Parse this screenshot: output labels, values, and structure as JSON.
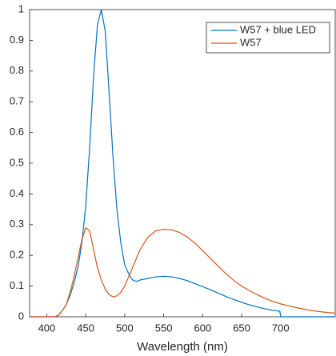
{
  "chart_data": {
    "type": "line",
    "xlabel": "Wavelength (nm)",
    "x": [
      380,
      390,
      400,
      410,
      415,
      420,
      425,
      430,
      435,
      440,
      445,
      450,
      455,
      460,
      465,
      470,
      475,
      480,
      485,
      490,
      495,
      500,
      505,
      510,
      515,
      520,
      530,
      540,
      550,
      560,
      570,
      580,
      590,
      600,
      610,
      620,
      630,
      640,
      650,
      660,
      670,
      680,
      690,
      699,
      700,
      710,
      720,
      730,
      740,
      750,
      760,
      770
    ],
    "series": [
      {
        "name": "W57 + blue LED",
        "color": "#0072bd",
        "values": [
          0,
          0,
          0,
          0,
          0.005,
          0.02,
          0.04,
          0.07,
          0.11,
          0.16,
          0.24,
          0.36,
          0.55,
          0.78,
          0.95,
          1.0,
          0.93,
          0.73,
          0.52,
          0.35,
          0.24,
          0.17,
          0.14,
          0.12,
          0.115,
          0.12,
          0.125,
          0.13,
          0.132,
          0.13,
          0.125,
          0.118,
          0.108,
          0.098,
          0.088,
          0.077,
          0.066,
          0.056,
          0.047,
          0.039,
          0.032,
          0.026,
          0.021,
          0.018,
          0,
          0,
          0,
          0,
          0,
          0,
          0,
          0
        ]
      },
      {
        "name": "W57",
        "color": "#d95319",
        "values": [
          0,
          0,
          0,
          0,
          0.005,
          0.02,
          0.04,
          0.08,
          0.13,
          0.19,
          0.25,
          0.29,
          0.28,
          0.22,
          0.16,
          0.12,
          0.09,
          0.072,
          0.065,
          0.068,
          0.08,
          0.1,
          0.13,
          0.16,
          0.19,
          0.22,
          0.26,
          0.28,
          0.285,
          0.283,
          0.275,
          0.26,
          0.24,
          0.215,
          0.19,
          0.165,
          0.14,
          0.118,
          0.1,
          0.085,
          0.072,
          0.06,
          0.05,
          0.043,
          0.042,
          0.036,
          0.03,
          0.025,
          0.02,
          0.017,
          0.014,
          0.012
        ]
      }
    ],
    "xlim": [
      378,
      770
    ],
    "ylim": [
      0,
      1
    ],
    "xticks": [
      400,
      450,
      500,
      550,
      600,
      650,
      700
    ],
    "yticks": [
      0,
      0.1,
      0.2,
      0.3,
      0.4,
      0.5,
      0.6,
      0.7,
      0.8,
      0.9,
      1
    ],
    "legend": "upper right"
  }
}
